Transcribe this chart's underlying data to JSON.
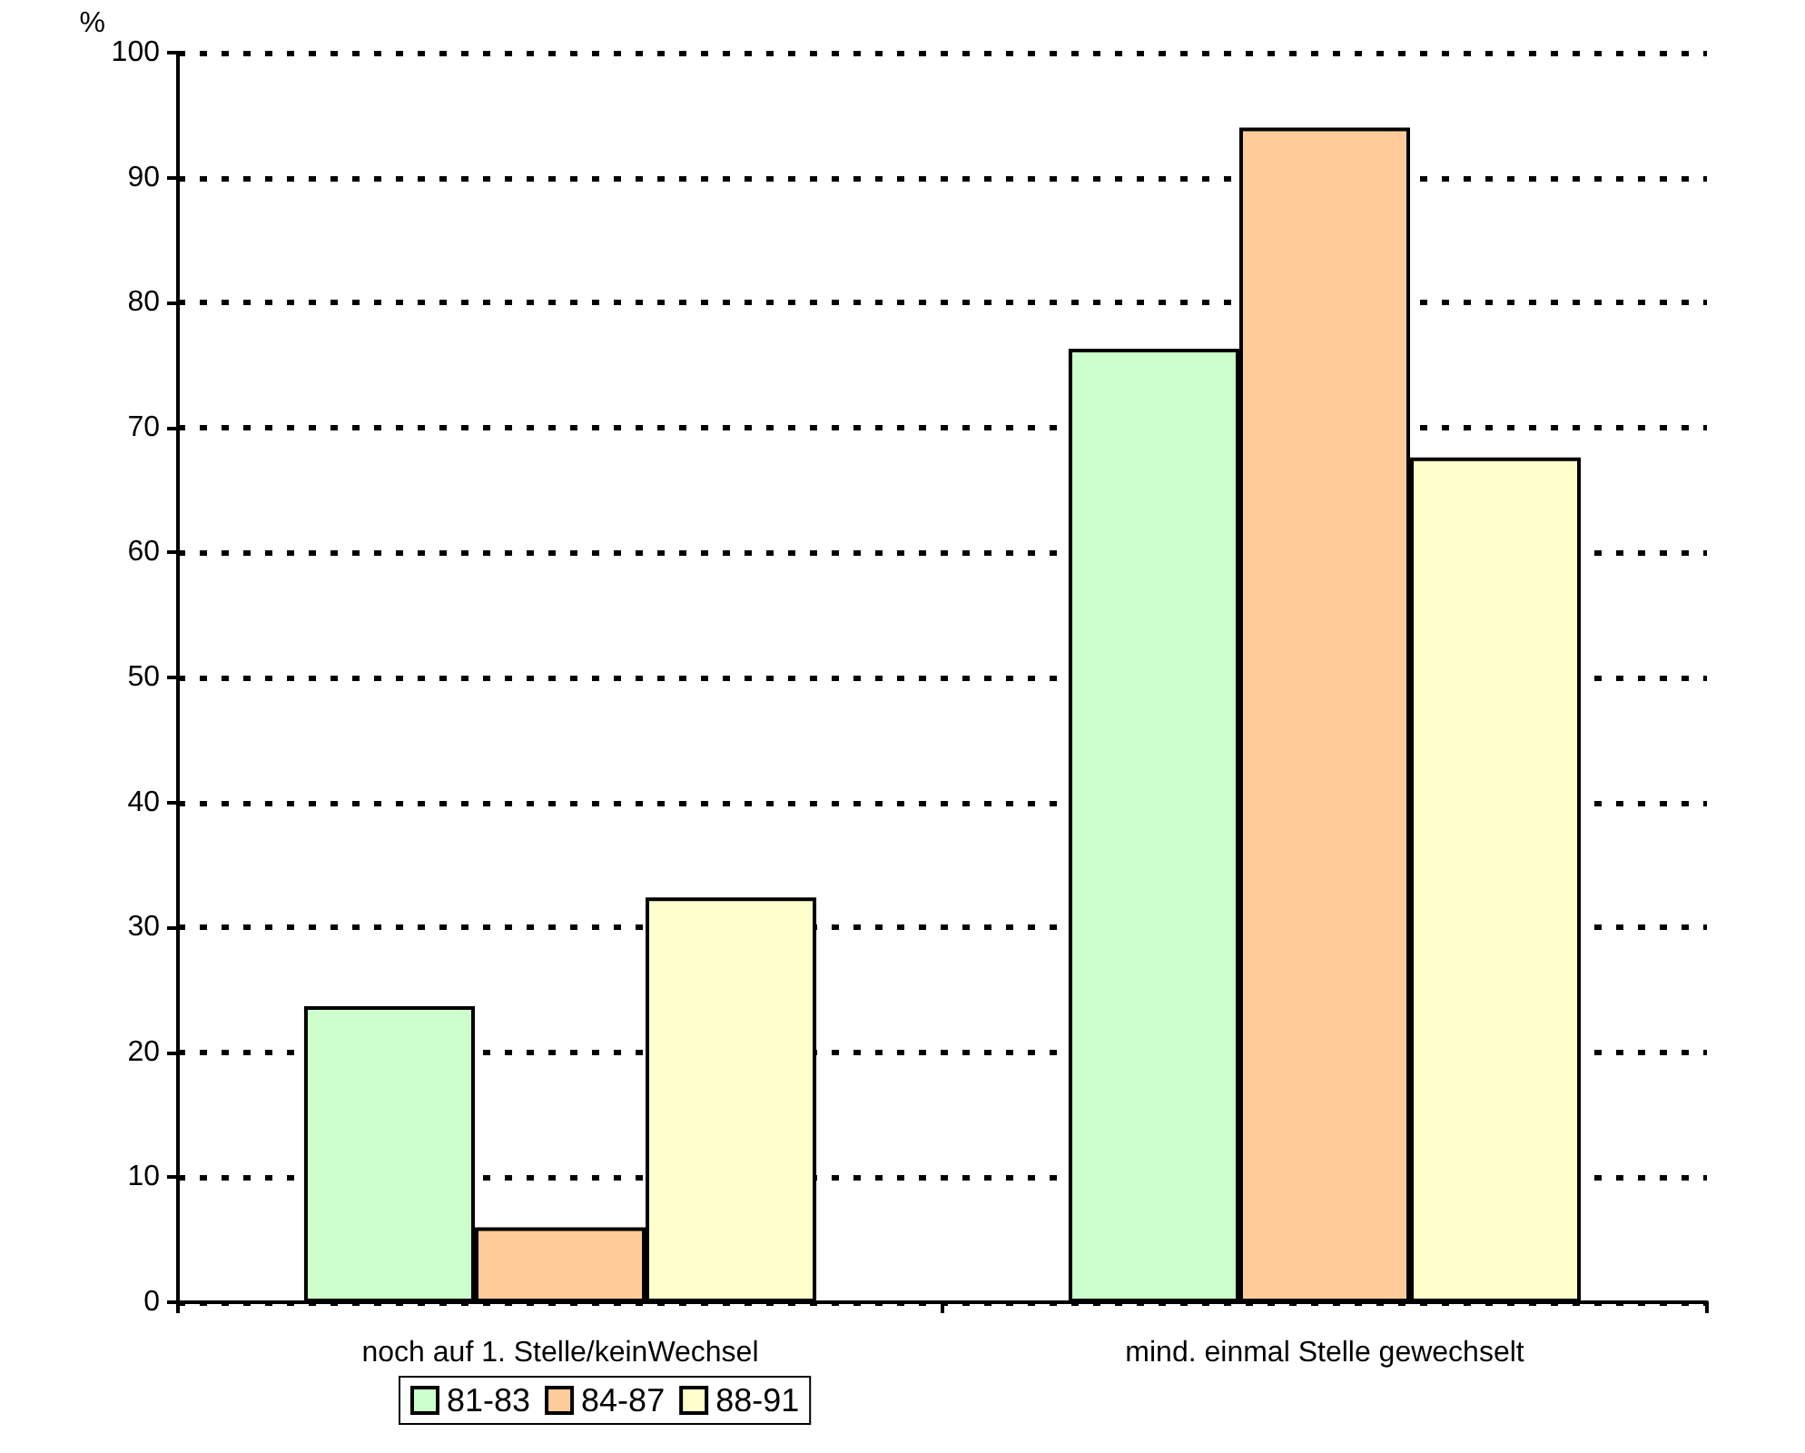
{
  "chart_data": {
    "type": "bar",
    "ylabel": "%",
    "categories": [
      "noch auf 1. Stelle/keinWechsel",
      "mind. einmal Stelle gewechselt"
    ],
    "series": [
      {
        "name": "81-83",
        "color": "#ccffcc",
        "values": [
          23.7,
          76.3
        ]
      },
      {
        "name": "84-87",
        "color": "#ffcc99",
        "values": [
          6.0,
          94.0
        ]
      },
      {
        "name": "88-91",
        "color": "#ffffcc",
        "values": [
          32.4,
          67.6
        ]
      }
    ],
    "ylim": [
      0,
      100
    ],
    "yticks": [
      0,
      10,
      20,
      30,
      40,
      50,
      60,
      70,
      80,
      90,
      100
    ],
    "grid": "y",
    "legend": "bottom"
  }
}
